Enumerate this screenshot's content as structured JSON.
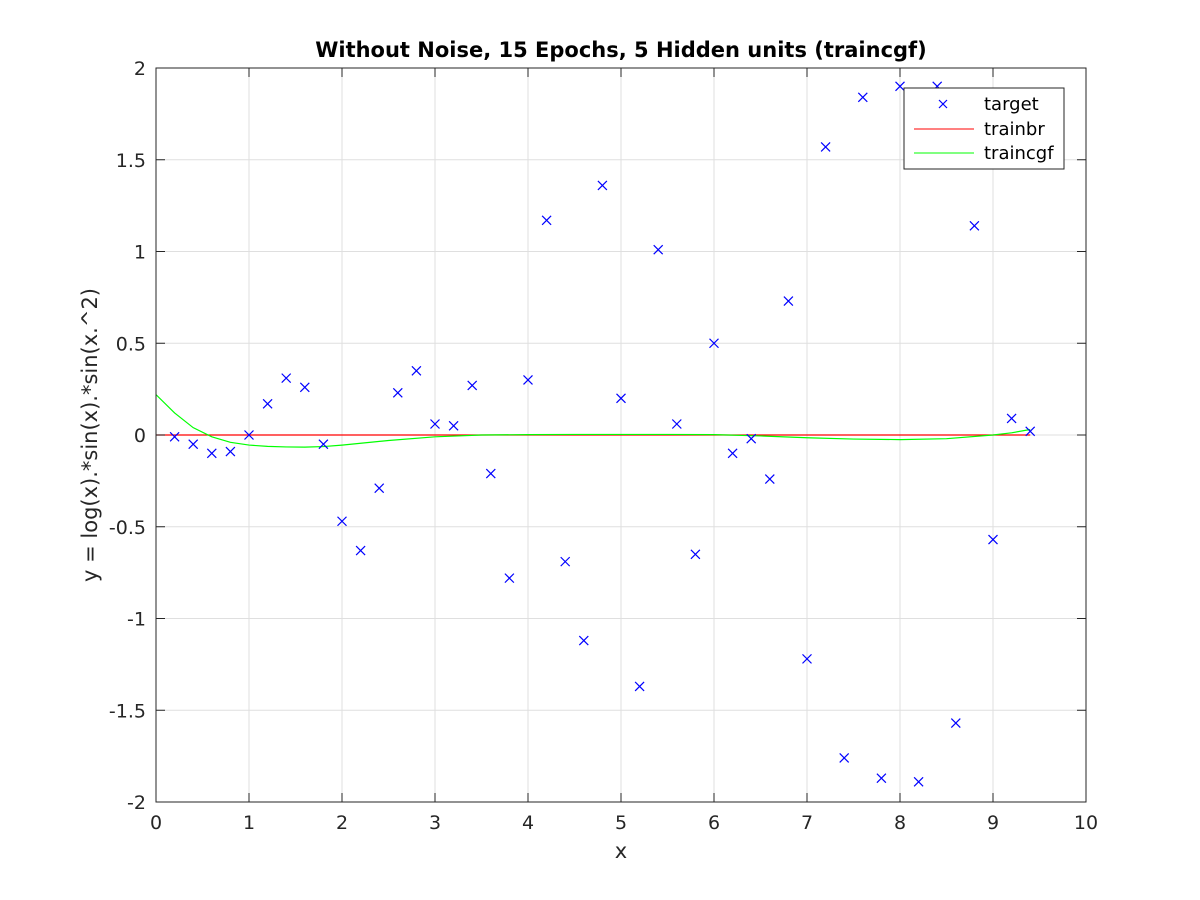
{
  "chart_data": {
    "type": "line",
    "title": "Without Noise, 15 Epochs, 5 Hidden units (traincgf)",
    "xlabel": "x",
    "ylabel": "y = log(x).*sin(x).*sin(x.^2)",
    "xlim": [
      0,
      10
    ],
    "ylim": [
      -2,
      2
    ],
    "xticks": [
      0,
      1,
      2,
      3,
      4,
      5,
      6,
      7,
      8,
      9,
      10
    ],
    "xtick_labels": [
      "0",
      "1",
      "2",
      "3",
      "4",
      "5",
      "6",
      "7",
      "8",
      "9",
      "10"
    ],
    "yticks": [
      -2,
      -1.5,
      -1,
      -0.5,
      0,
      0.5,
      1,
      1.5,
      2
    ],
    "ytick_labels": [
      "-2",
      "-1.5",
      "-1",
      "-0.5",
      "0",
      "0.5",
      "1",
      "1.5",
      "2"
    ],
    "grid": true,
    "legend_position": "top-right",
    "series": [
      {
        "name": "target",
        "style": "markers",
        "marker": "x",
        "color": "#0000ff",
        "x": [
          0.2,
          0.4,
          0.6,
          0.8,
          1.0,
          1.2,
          1.4,
          1.6,
          1.8,
          2.0,
          2.2,
          2.4,
          2.6,
          2.8,
          3.0,
          3.2,
          3.4,
          3.6,
          3.8,
          4.0,
          4.2,
          4.4,
          4.6,
          4.8,
          5.0,
          5.2,
          5.4,
          5.6,
          5.8,
          6.0,
          6.2,
          6.4,
          6.6,
          6.8,
          7.0,
          7.2,
          7.4,
          7.6,
          7.8,
          8.0,
          8.2,
          8.4,
          8.6,
          8.8,
          9.0,
          9.2,
          9.4
        ],
        "y": [
          -0.01,
          -0.05,
          -0.1,
          -0.09,
          0.0,
          0.17,
          0.31,
          0.26,
          -0.05,
          -0.47,
          -0.63,
          -0.29,
          0.23,
          0.35,
          0.06,
          0.05,
          0.27,
          -0.21,
          -0.78,
          0.3,
          1.17,
          -0.69,
          -1.12,
          1.36,
          0.2,
          -1.37,
          1.01,
          0.06,
          -0.65,
          0.5,
          -0.1,
          -0.02,
          -0.24,
          0.73,
          -1.22,
          1.57,
          -1.76,
          1.84,
          -1.87,
          1.9,
          -1.89,
          1.9,
          -1.57,
          1.14,
          -0.57,
          0.09,
          0.02
        ]
      },
      {
        "name": "trainbr",
        "style": "line",
        "color": "#ff0000",
        "x": [
          0,
          9.4
        ],
        "y": [
          0,
          0
        ]
      },
      {
        "name": "traincgf",
        "style": "line",
        "color": "#00ff00",
        "x": [
          0,
          0.2,
          0.4,
          0.6,
          0.8,
          1.0,
          1.2,
          1.4,
          1.6,
          1.8,
          2.0,
          2.5,
          3.0,
          3.5,
          4.0,
          4.5,
          5.0,
          5.5,
          6.0,
          6.5,
          7.0,
          7.5,
          8.0,
          8.5,
          9.0,
          9.2,
          9.4
        ],
        "y": [
          0.22,
          0.12,
          0.04,
          -0.01,
          -0.04,
          -0.055,
          -0.062,
          -0.065,
          -0.066,
          -0.063,
          -0.055,
          -0.03,
          -0.01,
          0.0,
          0.002,
          0.003,
          0.003,
          0.003,
          0.002,
          -0.005,
          -0.015,
          -0.022,
          -0.025,
          -0.02,
          0.0,
          0.012,
          0.03
        ]
      }
    ]
  }
}
